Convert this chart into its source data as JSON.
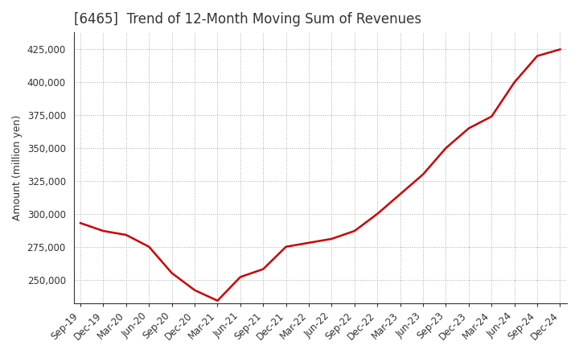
{
  "title": "[6465]  Trend of 12-Month Moving Sum of Revenues",
  "ylabel": "Amount (million yen)",
  "ylim": [
    232000,
    438000
  ],
  "yticks": [
    250000,
    275000,
    300000,
    325000,
    350000,
    375000,
    400000,
    425000
  ],
  "x_labels": [
    "Sep-19",
    "Dec-19",
    "Mar-20",
    "Jun-20",
    "Sep-20",
    "Dec-20",
    "Mar-21",
    "Jun-21",
    "Sep-21",
    "Dec-21",
    "Mar-22",
    "Jun-22",
    "Sep-22",
    "Dec-22",
    "Mar-23",
    "Jun-23",
    "Sep-23",
    "Dec-23",
    "Mar-24",
    "Jun-24",
    "Sep-24",
    "Dec-24"
  ],
  "values": [
    293000,
    287000,
    284000,
    275000,
    255000,
    242000,
    234000,
    252000,
    258000,
    275000,
    278000,
    281000,
    287000,
    300000,
    315000,
    330000,
    350000,
    365000,
    374000,
    400000,
    420000,
    425000
  ],
  "line_color": "#cc0000",
  "bg_color": "#ffffff",
  "plot_bg_color": "#ffffff",
  "grid_color": "#aaaaaa",
  "title_color": "#333333",
  "title_fontsize": 12,
  "label_fontsize": 9,
  "tick_fontsize": 8.5
}
